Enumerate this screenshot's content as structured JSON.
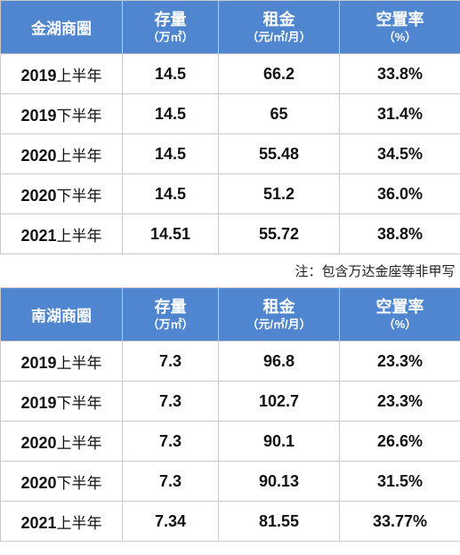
{
  "tables": [
    {
      "district": "金湖商圈",
      "headers": {
        "stock": "存量",
        "stock_unit": "（万㎡）",
        "rent": "租金",
        "rent_unit": "（元/㎡/月）",
        "vacancy": "空置率",
        "vacancy_unit": "（%）"
      },
      "rows": [
        {
          "year": "2019",
          "half": "上半年",
          "stock": "14.5",
          "rent": "66.2",
          "vacancy": "33.8%"
        },
        {
          "year": "2019",
          "half": "下半年",
          "stock": "14.5",
          "rent": "65",
          "vacancy": "31.4%"
        },
        {
          "year": "2020",
          "half": "上半年",
          "stock": "14.5",
          "rent": "55.48",
          "vacancy": "34.5%"
        },
        {
          "year": "2020",
          "half": "下半年",
          "stock": "14.5",
          "rent": "51.2",
          "vacancy": "36.0%"
        },
        {
          "year": "2021",
          "half": "上半年",
          "stock": "14.51",
          "rent": "55.72",
          "vacancy": "38.8%"
        }
      ]
    },
    {
      "district": "南湖商圈",
      "headers": {
        "stock": "存量",
        "stock_unit": "（万㎡）",
        "rent": "租金",
        "rent_unit": "（元/㎡/月）",
        "vacancy": "空置率",
        "vacancy_unit": "（%）"
      },
      "rows": [
        {
          "year": "2019",
          "half": "上半年",
          "stock": "7.3",
          "rent": "96.8",
          "vacancy": "23.3%"
        },
        {
          "year": "2019",
          "half": "下半年",
          "stock": "7.3",
          "rent": "102.7",
          "vacancy": "23.3%"
        },
        {
          "year": "2020",
          "half": "上半年",
          "stock": "7.3",
          "rent": "90.1",
          "vacancy": "26.6%"
        },
        {
          "year": "2020",
          "half": "下半年",
          "stock": "7.3",
          "rent": "90.13",
          "vacancy": "31.5%"
        },
        {
          "year": "2021",
          "half": "上半年",
          "stock": "7.34",
          "rent": "81.55",
          "vacancy": "33.77%"
        }
      ]
    }
  ],
  "note": "注：包含万达金座等非甲写"
}
